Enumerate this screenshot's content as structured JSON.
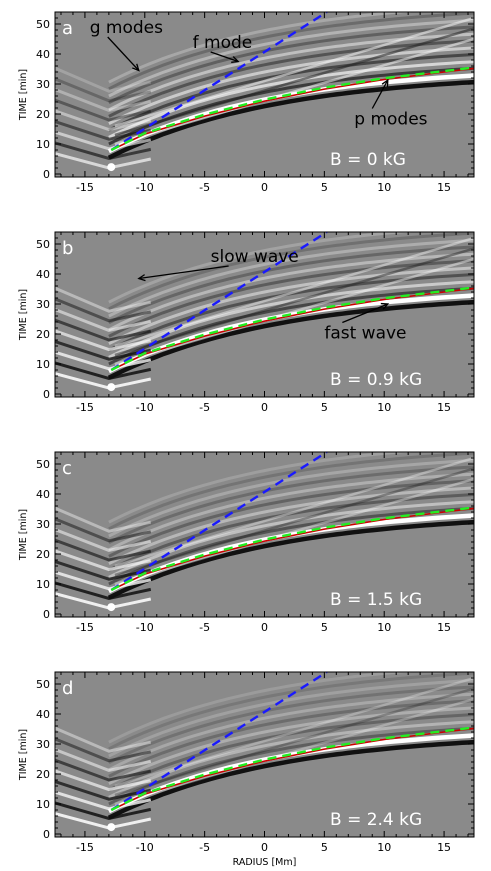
{
  "chart_data": [
    {
      "type": "line",
      "panel_letter": "a",
      "field_label": "B = 0 kG",
      "xlabel": "",
      "ylabel": "TIME [min]",
      "xlim": [
        -17.5,
        17.5
      ],
      "ylim": [
        -1,
        54
      ],
      "xticks": [
        -15,
        -10,
        -5,
        0,
        5,
        10,
        15
      ],
      "yticks": [
        0,
        10,
        20,
        30,
        40,
        50
      ],
      "series": [
        {
          "color": "#1a1aff",
          "dash": "dashed",
          "x": [
            -12.8,
            5.2
          ],
          "y": [
            8,
            54
          ]
        },
        {
          "color": "#cc0000",
          "dash": "solid",
          "x": [
            -12.8,
            -10,
            -5,
            0,
            5,
            10,
            15,
            17.5
          ],
          "y": [
            8,
            13.3,
            19.3,
            24.3,
            28.3,
            31.5,
            34,
            35.2
          ]
        },
        {
          "color": "#22ee22",
          "dash": "dashed",
          "x": [
            -12.8,
            -10,
            -5,
            0,
            5,
            10,
            15,
            17.5
          ],
          "y": [
            8,
            13.6,
            19.8,
            24.8,
            28.8,
            31.9,
            34.3,
            35.5
          ]
        }
      ],
      "annotations": [
        {
          "text": "g modes",
          "tx": -14.6,
          "ty": 47,
          "ax": -10.5,
          "ay": 34.5
        },
        {
          "text": "f mode",
          "tx": -6,
          "ty": 42,
          "ax": -2.2,
          "ay": 37.5
        },
        {
          "text": "p modes",
          "tx": 7.5,
          "ty": 16.5,
          "ax": 10.3,
          "ay": 31.3
        }
      ]
    },
    {
      "type": "line",
      "panel_letter": "b",
      "field_label": "B = 0.9 kG",
      "xlabel": "",
      "ylabel": "TIME [min]",
      "xlim": [
        -17.5,
        17.5
      ],
      "ylim": [
        -1,
        54
      ],
      "xticks": [
        -15,
        -10,
        -5,
        0,
        5,
        10,
        15
      ],
      "yticks": [
        0,
        10,
        20,
        30,
        40,
        50
      ],
      "series": [
        {
          "color": "#1a1aff",
          "dash": "dashed",
          "x": [
            -12.8,
            5.2
          ],
          "y": [
            8,
            54
          ]
        },
        {
          "color": "#cc0000",
          "dash": "solid",
          "x": [
            -12.8,
            -10,
            -5,
            0,
            5,
            10,
            15,
            17.5
          ],
          "y": [
            8,
            13.3,
            19.3,
            24.3,
            28.3,
            31.5,
            34,
            35.2
          ]
        },
        {
          "color": "#22ee22",
          "dash": "dashed",
          "x": [
            -12.8,
            -10,
            -5,
            0,
            5,
            10,
            15,
            17.5
          ],
          "y": [
            8,
            13.6,
            19.8,
            24.8,
            28.8,
            31.9,
            34.3,
            35.5
          ]
        }
      ],
      "annotations": [
        {
          "text": "slow wave",
          "tx": -4.5,
          "ty": 44,
          "ax": -10.5,
          "ay": 38.5
        },
        {
          "text": "fast wave",
          "tx": 5,
          "ty": 18.5,
          "ax": 10.3,
          "ay": 30
        }
      ]
    },
    {
      "type": "line",
      "panel_letter": "c",
      "field_label": "B = 1.5 kG",
      "xlabel": "",
      "ylabel": "TIME [min]",
      "xlim": [
        -17.5,
        17.5
      ],
      "ylim": [
        -1,
        54
      ],
      "xticks": [
        -15,
        -10,
        -5,
        0,
        5,
        10,
        15
      ],
      "yticks": [
        0,
        10,
        20,
        30,
        40,
        50
      ],
      "series": [
        {
          "color": "#1a1aff",
          "dash": "dashed",
          "x": [
            -12.8,
            5.2
          ],
          "y": [
            8,
            54
          ]
        },
        {
          "color": "#cc0000",
          "dash": "solid",
          "x": [
            -12.8,
            -10,
            -5,
            0,
            5,
            10,
            15,
            17.5
          ],
          "y": [
            8,
            13.3,
            19.3,
            24.3,
            28.3,
            31.5,
            34,
            35.2
          ]
        },
        {
          "color": "#22ee22",
          "dash": "dashed",
          "x": [
            -12.8,
            -10,
            -5,
            0,
            5,
            10,
            15,
            17.5
          ],
          "y": [
            8,
            13.6,
            19.8,
            24.8,
            28.8,
            31.9,
            34.3,
            35.5
          ]
        }
      ],
      "annotations": []
    },
    {
      "type": "line",
      "panel_letter": "d",
      "field_label": "B = 2.4 kG",
      "xlabel": "RADIUS [Mm]",
      "ylabel": "TIME [min]",
      "xlim": [
        -17.5,
        17.5
      ],
      "ylim": [
        -1,
        54
      ],
      "xticks": [
        -15,
        -10,
        -5,
        0,
        5,
        10,
        15
      ],
      "yticks": [
        0,
        10,
        20,
        30,
        40,
        50
      ],
      "series": [
        {
          "color": "#1a1aff",
          "dash": "dashed",
          "x": [
            -12.8,
            5.2
          ],
          "y": [
            8,
            54
          ]
        },
        {
          "color": "#cc0000",
          "dash": "solid",
          "x": [
            -12.8,
            -10,
            -5,
            0,
            5,
            10,
            15,
            17.5
          ],
          "y": [
            8,
            13.3,
            19.3,
            24.3,
            28.3,
            31.5,
            34,
            35.2
          ]
        },
        {
          "color": "#22ee22",
          "dash": "dashed",
          "x": [
            -12.8,
            -10,
            -5,
            0,
            5,
            10,
            15,
            17.5
          ],
          "y": [
            8,
            13.6,
            19.8,
            24.8,
            28.8,
            31.9,
            34.3,
            35.5
          ]
        }
      ],
      "annotations": []
    }
  ]
}
